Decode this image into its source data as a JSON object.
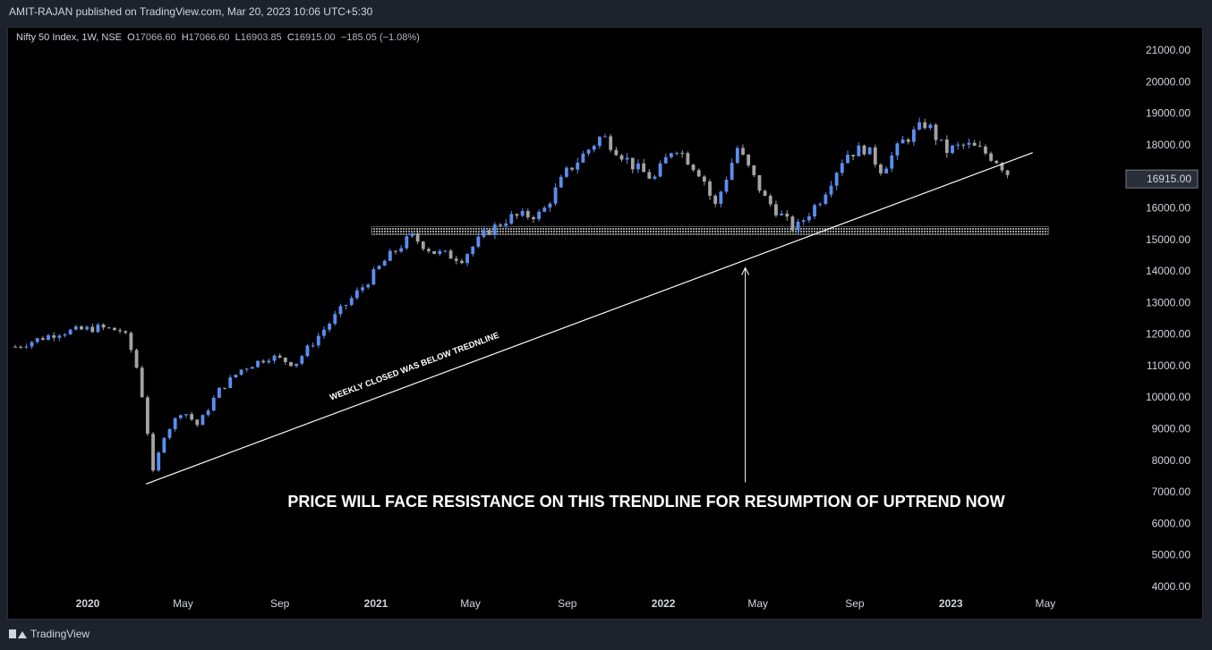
{
  "header": {
    "published": "AMIT-RAJAN published on TradingView.com, Mar 20, 2023 10:06 UTC+5:30"
  },
  "legend": {
    "symbol": "Nifty 50 Index, 1W, NSE",
    "o_label": "O",
    "o_value": "17066.60",
    "h_label": "H",
    "h_value": "17066.60",
    "l_label": "L",
    "l_value": "16903.85",
    "c_label": "C",
    "c_value": "16915.00",
    "change": "−185.05 (−1.08%)"
  },
  "footer": {
    "brand": "TradingView"
  },
  "colors": {
    "up": "#5b8def",
    "down": "#a3a3a3",
    "background": "#000000",
    "axis_text": "#d1d4dc",
    "trendline": "#ffffff"
  },
  "chart_data": {
    "type": "candlestick",
    "title": "Nifty 50 Index, 1W, NSE",
    "xlabel": "",
    "ylabel": "",
    "y_ticks": [
      4000,
      5000,
      6000,
      7000,
      8000,
      9000,
      10000,
      11000,
      12000,
      13000,
      14000,
      15000,
      16000,
      17000,
      18000,
      19000,
      20000,
      21000
    ],
    "y_tick_labels": [
      "4000.00",
      "5000.00",
      "6000.00",
      "7000.00",
      "8000.00",
      "9000.00",
      "10000.00",
      "11000.00",
      "12000.00",
      "13000.00",
      "14000.00",
      "15000.00",
      "16000.00",
      "17000.00",
      "18000.00",
      "19000.00",
      "20000.00",
      "21000.00"
    ],
    "ylim": [
      4000,
      21300
    ],
    "x_ticks": [
      {
        "label": "2020",
        "date": "2020-01-01",
        "bold": true
      },
      {
        "label": "May",
        "date": "2020-05-01",
        "bold": false
      },
      {
        "label": "Sep",
        "date": "2020-09-01",
        "bold": false
      },
      {
        "label": "2021",
        "date": "2021-01-01",
        "bold": true
      },
      {
        "label": "May",
        "date": "2021-05-01",
        "bold": false
      },
      {
        "label": "Sep",
        "date": "2021-09-01",
        "bold": false
      },
      {
        "label": "2022",
        "date": "2022-01-01",
        "bold": true
      },
      {
        "label": "May",
        "date": "2022-05-01",
        "bold": false
      },
      {
        "label": "Sep",
        "date": "2022-09-01",
        "bold": false
      },
      {
        "label": "2023",
        "date": "2023-01-01",
        "bold": true
      },
      {
        "label": "May",
        "date": "2023-05-01",
        "bold": false
      }
    ],
    "current_price": "16915.00",
    "price_path": [
      [
        "2019-10-01",
        11600
      ],
      [
        "2019-11-25",
        12050
      ],
      [
        "2020-01-15",
        12200
      ],
      [
        "2020-02-15",
        12100
      ],
      [
        "2020-03-01",
        11200
      ],
      [
        "2020-03-12",
        9800
      ],
      [
        "2020-03-24",
        7600
      ],
      [
        "2020-04-07",
        8800
      ],
      [
        "2020-04-30",
        9600
      ],
      [
        "2020-05-20",
        9100
      ],
      [
        "2020-06-15",
        10200
      ],
      [
        "2020-07-15",
        10900
      ],
      [
        "2020-08-20",
        11300
      ],
      [
        "2020-09-20",
        11050
      ],
      [
        "2020-10-15",
        11800
      ],
      [
        "2020-11-15",
        12700
      ],
      [
        "2020-12-15",
        13500
      ],
      [
        "2021-01-15",
        14400
      ],
      [
        "2021-02-15",
        15100
      ],
      [
        "2021-03-15",
        14600
      ],
      [
        "2021-04-20",
        14400
      ],
      [
        "2021-05-20",
        15200
      ],
      [
        "2021-06-20",
        15700
      ],
      [
        "2021-07-30",
        15800
      ],
      [
        "2021-08-30",
        17100
      ],
      [
        "2021-10-15",
        18300
      ],
      [
        "2021-11-25",
        17300
      ],
      [
        "2021-12-20",
        16900
      ],
      [
        "2022-01-15",
        18000
      ],
      [
        "2022-02-20",
        17000
      ],
      [
        "2022-03-07",
        16000
      ],
      [
        "2022-04-05",
        17900
      ],
      [
        "2022-05-10",
        16300
      ],
      [
        "2022-06-17",
        15300
      ],
      [
        "2022-07-20",
        16300
      ],
      [
        "2022-08-20",
        17700
      ],
      [
        "2022-09-15",
        17900
      ],
      [
        "2022-10-05",
        17200
      ],
      [
        "2022-11-01",
        18100
      ],
      [
        "2022-12-01",
        18700
      ],
      [
        "2022-12-25",
        17800
      ],
      [
        "2023-01-20",
        18000
      ],
      [
        "2023-02-10",
        17800
      ],
      [
        "2023-03-01",
        17500
      ],
      [
        "2023-03-20",
        16915
      ]
    ],
    "annotations": {
      "trendline_label": "WEEKLY CLOSED WAS BELOW TREDNLINE",
      "main_text": "PRICE WILL FACE RESISTANCE ON THIS TRENDLINE FOR RESUMPTION OF UPTREND NOW",
      "trendline": [
        [
          "2020-03-15",
          7250
        ],
        [
          "2023-04-15",
          17750
        ]
      ],
      "resistance_zone": {
        "from": "2021-01-01",
        "to": "2023-05-05",
        "low": 15150,
        "high": 15400
      },
      "arrow": {
        "date": "2022-04-15",
        "from": 7300,
        "to": 14100
      }
    }
  }
}
